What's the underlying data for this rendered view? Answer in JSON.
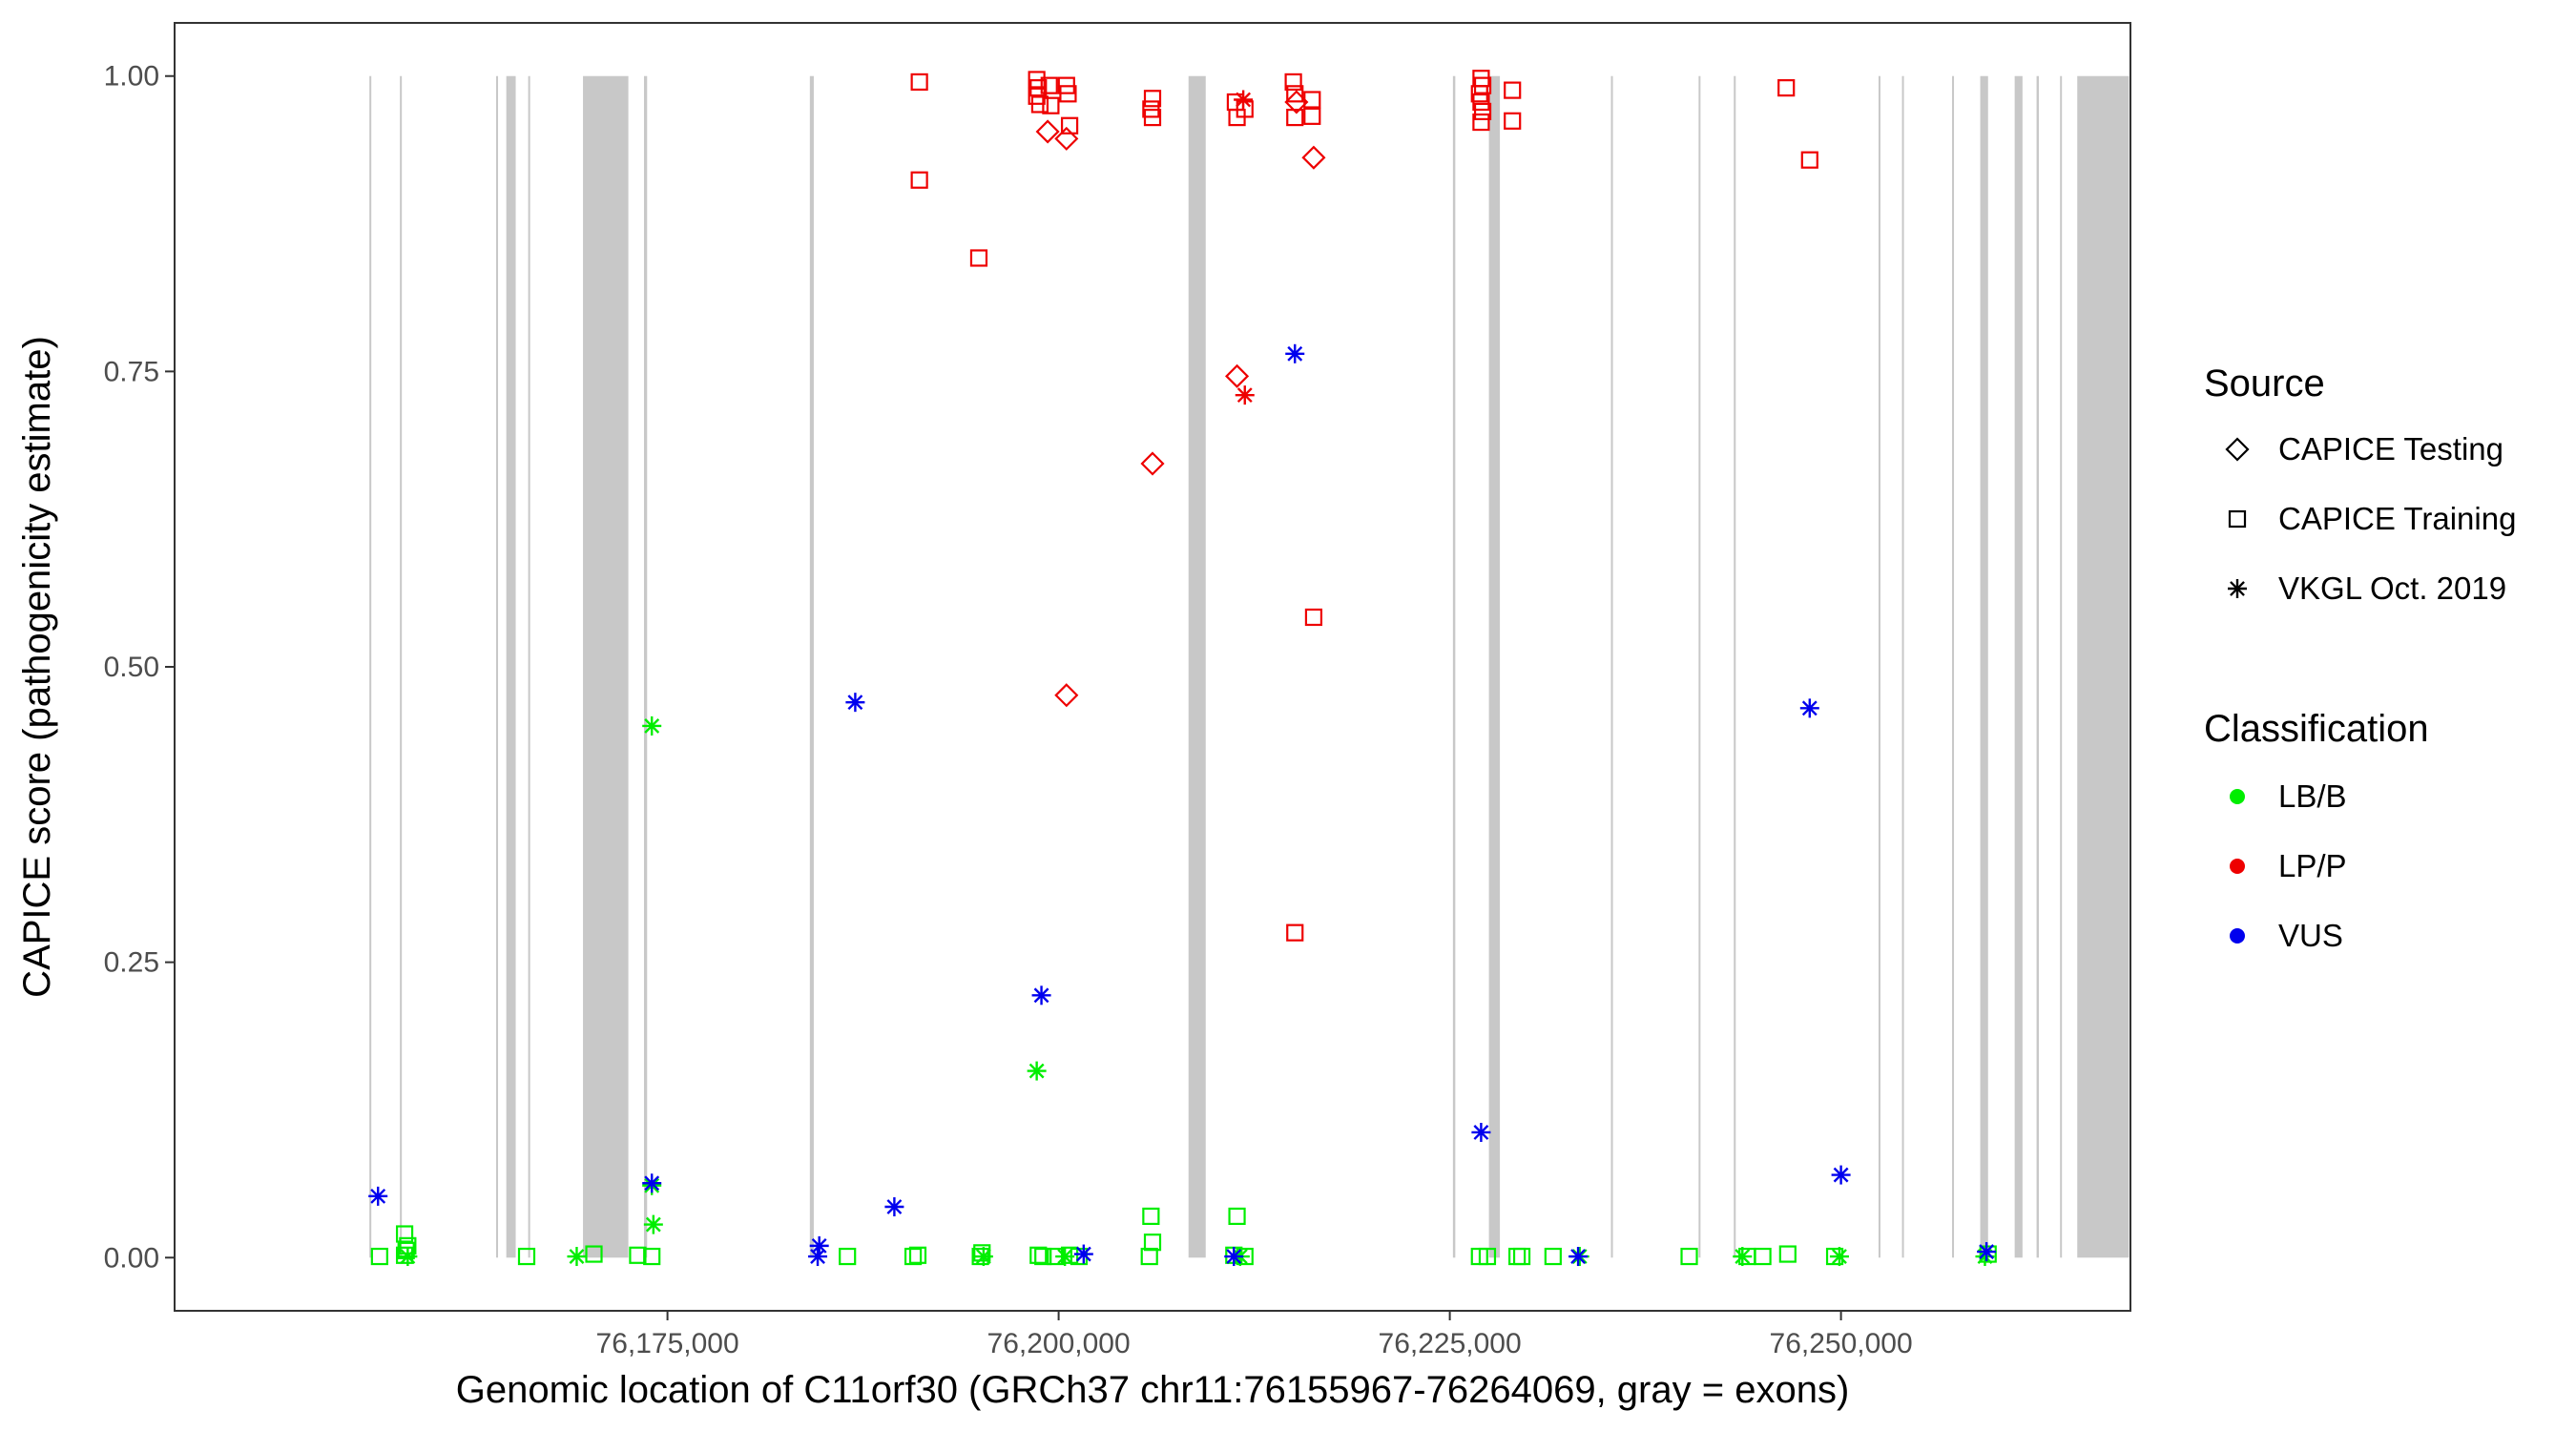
{
  "chart_data": {
    "type": "scatter",
    "xlabel": "Genomic location of C11orf30 (GRCh37 chr11:76155967-76264069, gray = exons)",
    "ylabel": "CAPICE score (pathogenicity estimate)",
    "xlim": [
      76143500,
      76268500
    ],
    "ylim": [
      -0.045,
      1.045
    ],
    "x_ticks": [
      {
        "value": 76175000,
        "label": "76,175,000"
      },
      {
        "value": 76200000,
        "label": "76,200,000"
      },
      {
        "value": 76225000,
        "label": "76,225,000"
      },
      {
        "value": 76250000,
        "label": "76,250,000"
      }
    ],
    "y_ticks": [
      {
        "value": 0,
        "label": "0.00"
      },
      {
        "value": 0.25,
        "label": "0.25"
      },
      {
        "value": 0.5,
        "label": "0.50"
      },
      {
        "value": 0.75,
        "label": "0.75"
      },
      {
        "value": 1,
        "label": "1.00"
      }
    ],
    "grid": false,
    "exons": [
      [
        76155950,
        76156050
      ],
      [
        76157900,
        76158000
      ],
      [
        76164050,
        76164150
      ],
      [
        76164700,
        76165300
      ],
      [
        76166100,
        76166200
      ],
      [
        76169600,
        76172500
      ],
      [
        76173500,
        76173700
      ],
      [
        76184100,
        76184350
      ],
      [
        76208300,
        76209400
      ],
      [
        76225200,
        76225350
      ],
      [
        76227500,
        76228200
      ],
      [
        76235300,
        76235400
      ],
      [
        76240900,
        76241000
      ],
      [
        76243150,
        76243250
      ],
      [
        76252400,
        76252500
      ],
      [
        76253900,
        76254000
      ],
      [
        76257100,
        76257200
      ],
      [
        76258900,
        76259400
      ],
      [
        76261100,
        76261600
      ],
      [
        76262500,
        76262650
      ],
      [
        76264000,
        76264100
      ],
      [
        76265100,
        76268400
      ]
    ],
    "legend": {
      "position": "right",
      "source_title": "Source",
      "source_items": [
        {
          "label": "CAPICE Testing",
          "shape": "diamond"
        },
        {
          "label": "CAPICE Training",
          "shape": "square"
        },
        {
          "label": "VKGL Oct. 2019",
          "shape": "asterisk"
        }
      ],
      "class_title": "Classification",
      "class_items": [
        {
          "label": "LB/B",
          "color": "#00ee00"
        },
        {
          "label": "LP/P",
          "color": "#ee0000"
        },
        {
          "label": "VUS",
          "color": "#0000ee"
        }
      ]
    },
    "points": [
      {
        "x": 76156600,
        "y": 0.001,
        "source": "CAPICE Training",
        "class": "LB/B"
      },
      {
        "x": 76158200,
        "y": 0.002,
        "source": "CAPICE Training",
        "class": "LB/B"
      },
      {
        "x": 76158300,
        "y": 0.006,
        "source": "CAPICE Training",
        "class": "LB/B"
      },
      {
        "x": 76158400,
        "y": 0.01,
        "source": "CAPICE Training",
        "class": "LB/B"
      },
      {
        "x": 76158200,
        "y": 0.02,
        "source": "CAPICE Training",
        "class": "LB/B"
      },
      {
        "x": 76158400,
        "y": 0.001,
        "source": "VKGL Oct. 2019",
        "class": "LB/B"
      },
      {
        "x": 76166000,
        "y": 0.001,
        "source": "CAPICE Training",
        "class": "LB/B"
      },
      {
        "x": 76169200,
        "y": 0.001,
        "source": "VKGL Oct. 2019",
        "class": "LB/B"
      },
      {
        "x": 76170300,
        "y": 0.003,
        "source": "CAPICE Training",
        "class": "LB/B"
      },
      {
        "x": 76173100,
        "y": 0.002,
        "source": "CAPICE Training",
        "class": "LB/B"
      },
      {
        "x": 76174000,
        "y": 0.001,
        "source": "CAPICE Training",
        "class": "LB/B"
      },
      {
        "x": 76174100,
        "y": 0.028,
        "source": "VKGL Oct. 2019",
        "class": "LB/B"
      },
      {
        "x": 76174000,
        "y": 0.061,
        "source": "VKGL Oct. 2019",
        "class": "LB/B"
      },
      {
        "x": 76174000,
        "y": 0.45,
        "source": "VKGL Oct. 2019",
        "class": "LB/B"
      },
      {
        "x": 76186500,
        "y": 0.001,
        "source": "CAPICE Training",
        "class": "LB/B"
      },
      {
        "x": 76190700,
        "y": 0.001,
        "source": "CAPICE Training",
        "class": "LB/B"
      },
      {
        "x": 76191000,
        "y": 0.002,
        "source": "CAPICE Training",
        "class": "LB/B"
      },
      {
        "x": 76195000,
        "y": 0.001,
        "source": "CAPICE Training",
        "class": "LB/B"
      },
      {
        "x": 76195100,
        "y": 0.004,
        "source": "CAPICE Training",
        "class": "LB/B"
      },
      {
        "x": 76195200,
        "y": 0.001,
        "source": "VKGL Oct. 2019",
        "class": "LB/B"
      },
      {
        "x": 76198600,
        "y": 0.158,
        "source": "VKGL Oct. 2019",
        "class": "LB/B"
      },
      {
        "x": 76198700,
        "y": 0.002,
        "source": "CAPICE Training",
        "class": "LB/B"
      },
      {
        "x": 76199000,
        "y": 0.001,
        "source": "CAPICE Training",
        "class": "LB/B"
      },
      {
        "x": 76199800,
        "y": 0.001,
        "source": "CAPICE Training",
        "class": "LB/B"
      },
      {
        "x": 76200400,
        "y": 0.001,
        "source": "VKGL Oct. 2019",
        "class": "LB/B"
      },
      {
        "x": 76200700,
        "y": 0.002,
        "source": "CAPICE Training",
        "class": "LB/B"
      },
      {
        "x": 76201300,
        "y": 0.001,
        "source": "CAPICE Training",
        "class": "LB/B"
      },
      {
        "x": 76205800,
        "y": 0.001,
        "source": "CAPICE Training",
        "class": "LB/B"
      },
      {
        "x": 76206000,
        "y": 0.013,
        "source": "CAPICE Training",
        "class": "LB/B"
      },
      {
        "x": 76205900,
        "y": 0.035,
        "source": "CAPICE Training",
        "class": "LB/B"
      },
      {
        "x": 76211200,
        "y": 0.002,
        "source": "CAPICE Training",
        "class": "LB/B"
      },
      {
        "x": 76211400,
        "y": 0.035,
        "source": "CAPICE Training",
        "class": "LB/B"
      },
      {
        "x": 76211600,
        "y": 0.001,
        "source": "VKGL Oct. 2019",
        "class": "LB/B"
      },
      {
        "x": 76211900,
        "y": 0.001,
        "source": "CAPICE Training",
        "class": "LB/B"
      },
      {
        "x": 76226900,
        "y": 0.001,
        "source": "CAPICE Training",
        "class": "LB/B"
      },
      {
        "x": 76227400,
        "y": 0.001,
        "source": "CAPICE Training",
        "class": "LB/B"
      },
      {
        "x": 76229300,
        "y": 0.001,
        "source": "CAPICE Training",
        "class": "LB/B"
      },
      {
        "x": 76229600,
        "y": 0.001,
        "source": "CAPICE Training",
        "class": "LB/B"
      },
      {
        "x": 76231600,
        "y": 0.001,
        "source": "CAPICE Training",
        "class": "LB/B"
      },
      {
        "x": 76233300,
        "y": 0.001,
        "source": "VKGL Oct. 2019",
        "class": "LB/B"
      },
      {
        "x": 76240300,
        "y": 0.001,
        "source": "CAPICE Training",
        "class": "LB/B"
      },
      {
        "x": 76243700,
        "y": 0.001,
        "source": "VKGL Oct. 2019",
        "class": "LB/B"
      },
      {
        "x": 76244000,
        "y": 0.001,
        "source": "CAPICE Training",
        "class": "LB/B"
      },
      {
        "x": 76245000,
        "y": 0.001,
        "source": "CAPICE Training",
        "class": "LB/B"
      },
      {
        "x": 76246600,
        "y": 0.003,
        "source": "CAPICE Training",
        "class": "LB/B"
      },
      {
        "x": 76249600,
        "y": 0.001,
        "source": "CAPICE Training",
        "class": "LB/B"
      },
      {
        "x": 76249900,
        "y": 0.001,
        "source": "VKGL Oct. 2019",
        "class": "LB/B"
      },
      {
        "x": 76259200,
        "y": 0.001,
        "source": "VKGL Oct. 2019",
        "class": "LB/B"
      },
      {
        "x": 76259400,
        "y": 0.003,
        "source": "CAPICE Training",
        "class": "LB/B"
      },
      {
        "x": 76191100,
        "y": 0.995,
        "source": "CAPICE Training",
        "class": "LP/P"
      },
      {
        "x": 76191100,
        "y": 0.912,
        "source": "CAPICE Training",
        "class": "LP/P"
      },
      {
        "x": 76194900,
        "y": 0.846,
        "source": "CAPICE Training",
        "class": "LP/P"
      },
      {
        "x": 76198600,
        "y": 0.997,
        "source": "CAPICE Training",
        "class": "LP/P"
      },
      {
        "x": 76198700,
        "y": 0.99,
        "source": "CAPICE Training",
        "class": "LP/P"
      },
      {
        "x": 76198600,
        "y": 0.983,
        "source": "CAPICE Training",
        "class": "LP/P"
      },
      {
        "x": 76198800,
        "y": 0.976,
        "source": "CAPICE Training",
        "class": "LP/P"
      },
      {
        "x": 76199400,
        "y": 0.992,
        "source": "CAPICE Training",
        "class": "LP/P"
      },
      {
        "x": 76199500,
        "y": 0.975,
        "source": "CAPICE Training",
        "class": "LP/P"
      },
      {
        "x": 76199300,
        "y": 0.953,
        "source": "CAPICE Testing",
        "class": "LP/P"
      },
      {
        "x": 76200500,
        "y": 0.992,
        "source": "CAPICE Training",
        "class": "LP/P"
      },
      {
        "x": 76200600,
        "y": 0.985,
        "source": "CAPICE Training",
        "class": "LP/P"
      },
      {
        "x": 76200700,
        "y": 0.958,
        "source": "CAPICE Training",
        "class": "LP/P"
      },
      {
        "x": 76200500,
        "y": 0.947,
        "source": "CAPICE Testing",
        "class": "LP/P"
      },
      {
        "x": 76200500,
        "y": 0.476,
        "source": "CAPICE Testing",
        "class": "LP/P"
      },
      {
        "x": 76206000,
        "y": 0.981,
        "source": "CAPICE Training",
        "class": "LP/P"
      },
      {
        "x": 76205900,
        "y": 0.972,
        "source": "CAPICE Training",
        "class": "LP/P"
      },
      {
        "x": 76206000,
        "y": 0.965,
        "source": "CAPICE Training",
        "class": "LP/P"
      },
      {
        "x": 76206000,
        "y": 0.672,
        "source": "CAPICE Testing",
        "class": "LP/P"
      },
      {
        "x": 76211300,
        "y": 0.978,
        "source": "CAPICE Training",
        "class": "LP/P"
      },
      {
        "x": 76211400,
        "y": 0.965,
        "source": "CAPICE Training",
        "class": "LP/P"
      },
      {
        "x": 76211800,
        "y": 0.98,
        "source": "VKGL Oct. 2019",
        "class": "LP/P"
      },
      {
        "x": 76211900,
        "y": 0.972,
        "source": "CAPICE Training",
        "class": "LP/P"
      },
      {
        "x": 76211400,
        "y": 0.746,
        "source": "CAPICE Testing",
        "class": "LP/P"
      },
      {
        "x": 76211900,
        "y": 0.73,
        "source": "VKGL Oct. 2019",
        "class": "LP/P"
      },
      {
        "x": 76215000,
        "y": 0.995,
        "source": "CAPICE Training",
        "class": "LP/P"
      },
      {
        "x": 76215100,
        "y": 0.985,
        "source": "CAPICE Training",
        "class": "LP/P"
      },
      {
        "x": 76215200,
        "y": 0.978,
        "source": "CAPICE Testing",
        "class": "LP/P"
      },
      {
        "x": 76215100,
        "y": 0.965,
        "source": "CAPICE Training",
        "class": "LP/P"
      },
      {
        "x": 76216200,
        "y": 0.98,
        "source": "CAPICE Training",
        "class": "LP/P"
      },
      {
        "x": 76216200,
        "y": 0.966,
        "source": "CAPICE Training",
        "class": "LP/P"
      },
      {
        "x": 76216300,
        "y": 0.931,
        "source": "CAPICE Testing",
        "class": "LP/P"
      },
      {
        "x": 76216300,
        "y": 0.542,
        "source": "CAPICE Training",
        "class": "LP/P"
      },
      {
        "x": 76215100,
        "y": 0.275,
        "source": "CAPICE Training",
        "class": "LP/P"
      },
      {
        "x": 76227000,
        "y": 0.998,
        "source": "CAPICE Training",
        "class": "LP/P"
      },
      {
        "x": 76227100,
        "y": 0.992,
        "source": "CAPICE Training",
        "class": "LP/P"
      },
      {
        "x": 76226900,
        "y": 0.985,
        "source": "CAPICE Training",
        "class": "LP/P"
      },
      {
        "x": 76227000,
        "y": 0.978,
        "source": "CAPICE Training",
        "class": "LP/P"
      },
      {
        "x": 76227100,
        "y": 0.97,
        "source": "CAPICE Training",
        "class": "LP/P"
      },
      {
        "x": 76227000,
        "y": 0.961,
        "source": "CAPICE Training",
        "class": "LP/P"
      },
      {
        "x": 76229000,
        "y": 0.988,
        "source": "CAPICE Training",
        "class": "LP/P"
      },
      {
        "x": 76229000,
        "y": 0.962,
        "source": "CAPICE Training",
        "class": "LP/P"
      },
      {
        "x": 76246500,
        "y": 0.99,
        "source": "CAPICE Training",
        "class": "LP/P"
      },
      {
        "x": 76248000,
        "y": 0.929,
        "source": "CAPICE Training",
        "class": "LP/P"
      },
      {
        "x": 76156500,
        "y": 0.052,
        "source": "VKGL Oct. 2019",
        "class": "VUS"
      },
      {
        "x": 76174000,
        "y": 0.063,
        "source": "VKGL Oct. 2019",
        "class": "VUS"
      },
      {
        "x": 76184700,
        "y": 0.01,
        "source": "VKGL Oct. 2019",
        "class": "VUS"
      },
      {
        "x": 76184600,
        "y": 0.001,
        "source": "VKGL Oct. 2019",
        "class": "VUS"
      },
      {
        "x": 76187000,
        "y": 0.47,
        "source": "VKGL Oct. 2019",
        "class": "VUS"
      },
      {
        "x": 76189500,
        "y": 0.043,
        "source": "VKGL Oct. 2019",
        "class": "VUS"
      },
      {
        "x": 76198900,
        "y": 0.222,
        "source": "VKGL Oct. 2019",
        "class": "VUS"
      },
      {
        "x": 76201600,
        "y": 0.003,
        "source": "VKGL Oct. 2019",
        "class": "VUS"
      },
      {
        "x": 76211200,
        "y": 0.001,
        "source": "VKGL Oct. 2019",
        "class": "VUS"
      },
      {
        "x": 76215100,
        "y": 0.765,
        "source": "VKGL Oct. 2019",
        "class": "VUS"
      },
      {
        "x": 76227000,
        "y": 0.106,
        "source": "VKGL Oct. 2019",
        "class": "VUS"
      },
      {
        "x": 76233200,
        "y": 0.001,
        "source": "VKGL Oct. 2019",
        "class": "VUS"
      },
      {
        "x": 76248000,
        "y": 0.465,
        "source": "VKGL Oct. 2019",
        "class": "VUS"
      },
      {
        "x": 76250000,
        "y": 0.07,
        "source": "VKGL Oct. 2019",
        "class": "VUS"
      },
      {
        "x": 76259300,
        "y": 0.005,
        "source": "VKGL Oct. 2019",
        "class": "VUS"
      }
    ]
  }
}
